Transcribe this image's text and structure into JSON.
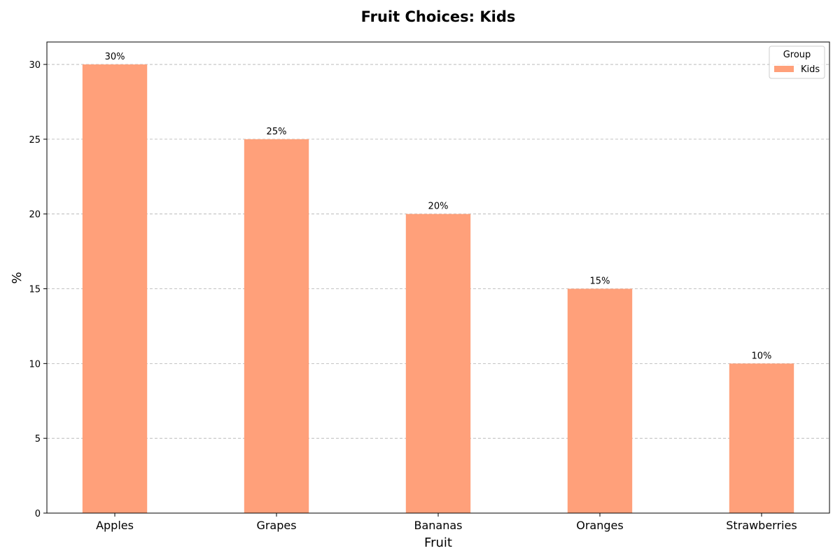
{
  "chart_data": {
    "type": "bar",
    "title": "Fruit Choices: Kids",
    "xlabel": "Fruit",
    "ylabel": "%",
    "categories": [
      "Apples",
      "Grapes",
      "Bananas",
      "Oranges",
      "Strawberries"
    ],
    "series": [
      {
        "name": "Kids",
        "values": [
          30,
          25,
          20,
          15,
          10
        ],
        "color": "#FFA07A"
      }
    ],
    "data_labels": [
      "30%",
      "25%",
      "20%",
      "15%",
      "10%"
    ],
    "ylim": [
      0,
      31.5
    ],
    "yticks": [
      0,
      5,
      10,
      15,
      20,
      25,
      30
    ],
    "grid": "y-dashed",
    "legend": {
      "title": "Group",
      "placement": "top-right"
    }
  }
}
